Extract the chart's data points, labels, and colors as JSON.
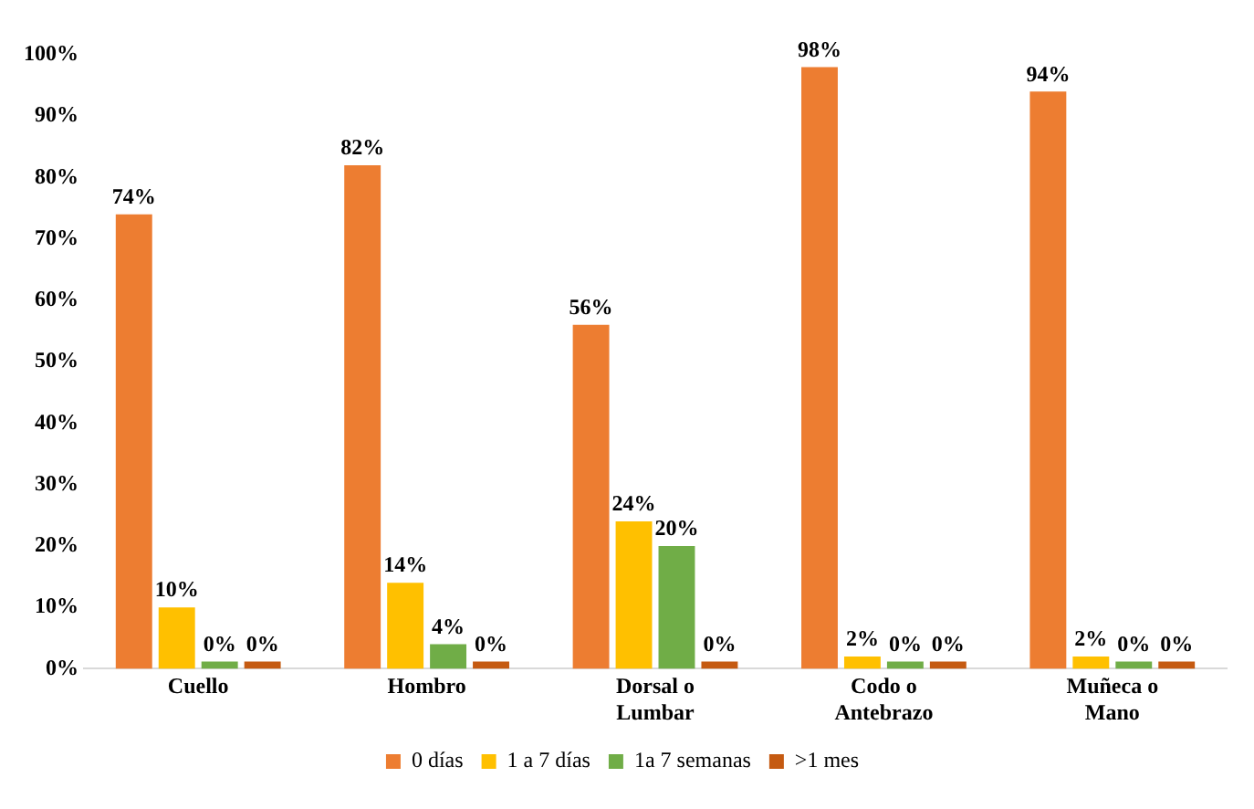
{
  "chart_data": {
    "type": "bar",
    "categories": [
      "Cuello",
      "Hombro",
      "Dorsal o Lumbar",
      "Codo o Antebrazo",
      "Muñeca o Mano"
    ],
    "series": [
      {
        "name": "0 días",
        "color": "#ed7d31",
        "values": [
          74,
          82,
          56,
          98,
          94
        ],
        "value_labels": [
          "74%",
          "82%",
          "56%",
          "98%",
          "94%"
        ]
      },
      {
        "name": "1 a 7 días",
        "color": "#ffc000",
        "values": [
          10,
          14,
          24,
          2,
          2
        ],
        "value_labels": [
          "10%",
          "14%",
          "24%",
          "2%",
          "2%"
        ]
      },
      {
        "name": "1a 7 semanas",
        "color": "#70ad47",
        "values": [
          0,
          4,
          20,
          0,
          0
        ],
        "value_labels": [
          "0%",
          "4%",
          "20%",
          "0%",
          "0%"
        ]
      },
      {
        "name": ">1 mes",
        "color": "#c55a11",
        "values": [
          0,
          0,
          0,
          0,
          0
        ],
        "value_labels": [
          "0%",
          "0%",
          "0%",
          "0%",
          "0%"
        ]
      }
    ],
    "ylim": [
      0,
      100
    ],
    "yticks": [
      {
        "value": 0,
        "label": "0%"
      },
      {
        "value": 10,
        "label": "10%"
      },
      {
        "value": 20,
        "label": "20%"
      },
      {
        "value": 30,
        "label": "30%"
      },
      {
        "value": 40,
        "label": "40%"
      },
      {
        "value": 50,
        "label": "50%"
      },
      {
        "value": 60,
        "label": "60%"
      },
      {
        "value": 70,
        "label": "70%"
      },
      {
        "value": 80,
        "label": "80%"
      },
      {
        "value": 90,
        "label": "90%"
      },
      {
        "value": 100,
        "label": "100%"
      }
    ],
    "legend": "bottom",
    "grid": false
  }
}
